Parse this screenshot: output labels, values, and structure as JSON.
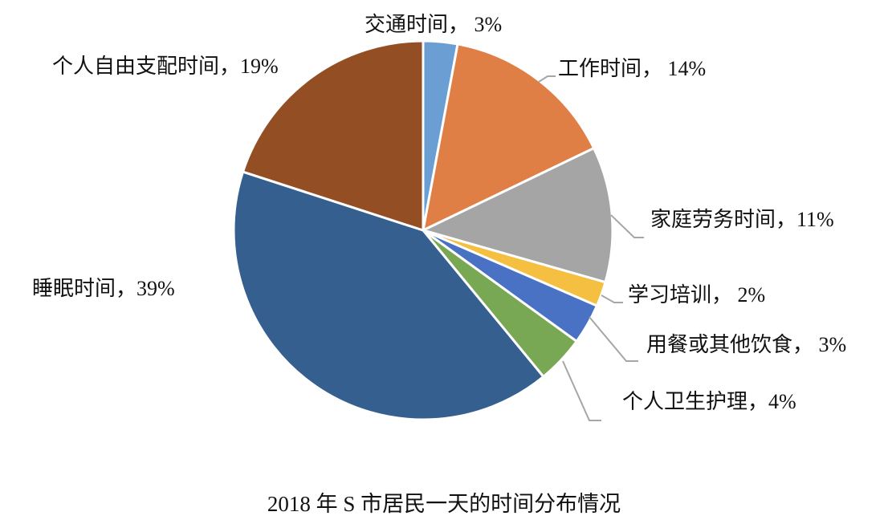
{
  "chart_data": {
    "type": "pie",
    "title": "2018 年 S 市居民一天的时间分布情况",
    "start_angle_deg": 0,
    "direction": "clockwise",
    "center": [
      527,
      287
    ],
    "radius": 236,
    "slices": [
      {
        "label": "交通时间",
        "value": 3,
        "display": "交通时间， 3%",
        "color": "#6B9ED2",
        "start": 0,
        "end": 10.5
      },
      {
        "label": "工作时间",
        "value": 14,
        "display": "工作时间， 14%",
        "color": "#E07F45",
        "start": 10.5,
        "end": 64.3
      },
      {
        "label": "家庭劳务时间",
        "value": 11,
        "display": "家庭劳务时间，11%",
        "color": "#A5A5A5",
        "start": 64.3,
        "end": 105.9
      },
      {
        "label": "学习培训",
        "value": 2,
        "display": "学习培训， 2%",
        "color": "#F5BF42",
        "start": 105.9,
        "end": 113.5
      },
      {
        "label": "用餐或其他饮食",
        "value": 3,
        "display": "用餐或其他饮食， 3%",
        "color": "#4A72C4",
        "start": 113.5,
        "end": 125.9
      },
      {
        "label": "个人卫生护理",
        "value": 4,
        "display": "个人卫生护理，4%",
        "color": "#78A853",
        "start": 125.9,
        "end": 140.6
      },
      {
        "label": "睡眠时间",
        "value": 39,
        "display": "睡眠时间，39%",
        "color": "#355F8F",
        "start": 140.6,
        "end": 288
      },
      {
        "label": "个人自由支配时间",
        "value": 19,
        "display": "个人自由支配时间，19%",
        "color": "#944E24",
        "start": 288,
        "end": 360
      }
    ],
    "legend": "none (data labels)"
  },
  "labels": {
    "traffic": "交通时间， 3%",
    "work": "工作时间， 14%",
    "housework": "家庭劳务时间，11%",
    "study": "学习培训， 2%",
    "meals": "用餐或其他饮食， 3%",
    "hygiene": "个人卫生护理，4%",
    "sleep": "睡眠时间，39%",
    "leisure": "个人自由支配时间，19%"
  },
  "caption": "2018 年 S 市居民一天的时间分布情况"
}
